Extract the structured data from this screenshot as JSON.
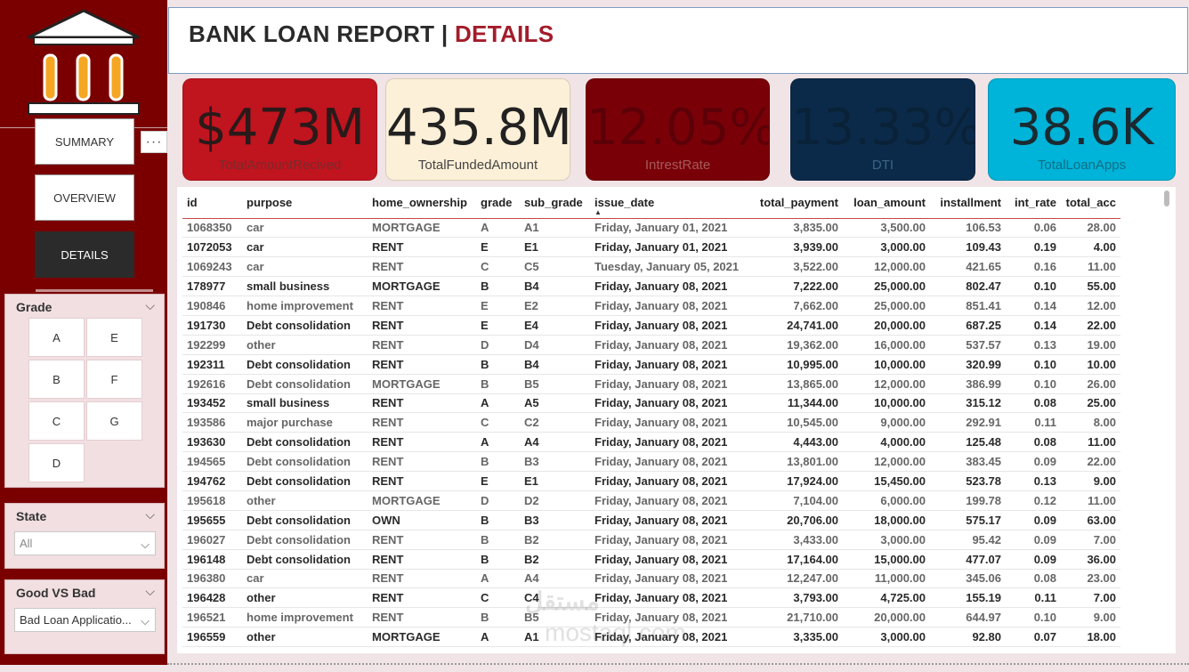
{
  "header": {
    "title_main": "BANK LOAN REPORT | ",
    "title_accent": "DETAILS"
  },
  "nav": {
    "summary": "SUMMARY",
    "overview": "OVERVIEW",
    "details": "DETAILS",
    "more": "···"
  },
  "icons": {
    "logo": "bank-building-icon",
    "chevron": "chevron-down-icon",
    "more": "more-options-icon",
    "sort": "sort-ascending-icon"
  },
  "colors": {
    "sidebar": "#7a0000",
    "accent": "#a31c2a"
  },
  "kpis": [
    {
      "value": "$473M",
      "label": "TotalAmountRecived",
      "bg": "#c0141f",
      "fg": "#2a1a1a",
      "label_color": "#7a2a2a"
    },
    {
      "value": "435.8M",
      "label": "TotalFundedAmount",
      "bg": "#fdf0d8",
      "fg": "#222222",
      "label_color": "#444444"
    },
    {
      "value": "12.05%",
      "label": "IntrestRate",
      "bg": "#7a0008",
      "fg": "#5c0008",
      "label_color": "#a45a5a"
    },
    {
      "value": "13.33%",
      "label": "DTI",
      "bg": "#0b2a4a",
      "fg": "#0a2238",
      "label_color": "#3d6585"
    },
    {
      "value": "38.6K",
      "label": "TotalLoanApps",
      "bg": "#00b3d8",
      "fg": "#1a2a30",
      "label_color": "#0e6e85"
    }
  ],
  "slicers": {
    "grade": {
      "title": "Grade",
      "options": [
        "A",
        "E",
        "B",
        "F",
        "C",
        "G",
        "D"
      ]
    },
    "state": {
      "title": "State",
      "value": "All"
    },
    "good_bad": {
      "title": "Good VS Bad",
      "value": "Bad Loan Applicatio..."
    }
  },
  "table": {
    "columns": [
      "id",
      "purpose",
      "home_ownership",
      "grade",
      "sub_grade",
      "issue_date",
      "total_payment",
      "loan_amount",
      "installment",
      "int_rate",
      "total_acc"
    ],
    "rows": [
      [
        "1068350",
        "car",
        "MORTGAGE",
        "A",
        "A1",
        "Friday, January 01, 2021",
        "3,835.00",
        "3,500.00",
        "106.53",
        "0.06",
        "28.00"
      ],
      [
        "1072053",
        "car",
        "RENT",
        "E",
        "E1",
        "Friday, January 01, 2021",
        "3,939.00",
        "3,000.00",
        "109.43",
        "0.19",
        "4.00"
      ],
      [
        "1069243",
        "car",
        "RENT",
        "C",
        "C5",
        "Tuesday, January 05, 2021",
        "3,522.00",
        "12,000.00",
        "421.65",
        "0.16",
        "11.00"
      ],
      [
        "178977",
        "small business",
        "MORTGAGE",
        "B",
        "B4",
        "Friday, January 08, 2021",
        "7,222.00",
        "25,000.00",
        "802.47",
        "0.10",
        "55.00"
      ],
      [
        "190846",
        "home improvement",
        "RENT",
        "E",
        "E2",
        "Friday, January 08, 2021",
        "7,662.00",
        "25,000.00",
        "851.41",
        "0.14",
        "12.00"
      ],
      [
        "191730",
        "Debt consolidation",
        "RENT",
        "E",
        "E4",
        "Friday, January 08, 2021",
        "24,741.00",
        "20,000.00",
        "687.25",
        "0.14",
        "22.00"
      ],
      [
        "192299",
        "other",
        "RENT",
        "D",
        "D4",
        "Friday, January 08, 2021",
        "19,362.00",
        "16,000.00",
        "537.57",
        "0.13",
        "19.00"
      ],
      [
        "192311",
        "Debt consolidation",
        "RENT",
        "B",
        "B4",
        "Friday, January 08, 2021",
        "10,995.00",
        "10,000.00",
        "320.99",
        "0.10",
        "10.00"
      ],
      [
        "192616",
        "Debt consolidation",
        "MORTGAGE",
        "B",
        "B5",
        "Friday, January 08, 2021",
        "13,865.00",
        "12,000.00",
        "386.99",
        "0.10",
        "26.00"
      ],
      [
        "193452",
        "small business",
        "RENT",
        "A",
        "A5",
        "Friday, January 08, 2021",
        "11,344.00",
        "10,000.00",
        "315.12",
        "0.08",
        "25.00"
      ],
      [
        "193586",
        "major purchase",
        "RENT",
        "C",
        "C2",
        "Friday, January 08, 2021",
        "10,545.00",
        "9,000.00",
        "292.91",
        "0.11",
        "8.00"
      ],
      [
        "193630",
        "Debt consolidation",
        "RENT",
        "A",
        "A4",
        "Friday, January 08, 2021",
        "4,443.00",
        "4,000.00",
        "125.48",
        "0.08",
        "11.00"
      ],
      [
        "194565",
        "Debt consolidation",
        "RENT",
        "B",
        "B3",
        "Friday, January 08, 2021",
        "13,801.00",
        "12,000.00",
        "383.45",
        "0.09",
        "22.00"
      ],
      [
        "194762",
        "Debt consolidation",
        "RENT",
        "E",
        "E1",
        "Friday, January 08, 2021",
        "17,924.00",
        "15,450.00",
        "523.78",
        "0.13",
        "9.00"
      ],
      [
        "195618",
        "other",
        "MORTGAGE",
        "D",
        "D2",
        "Friday, January 08, 2021",
        "7,104.00",
        "6,000.00",
        "199.78",
        "0.12",
        "11.00"
      ],
      [
        "195655",
        "Debt consolidation",
        "OWN",
        "B",
        "B3",
        "Friday, January 08, 2021",
        "20,706.00",
        "18,000.00",
        "575.17",
        "0.09",
        "63.00"
      ],
      [
        "196027",
        "Debt consolidation",
        "RENT",
        "B",
        "B2",
        "Friday, January 08, 2021",
        "3,433.00",
        "3,000.00",
        "95.42",
        "0.09",
        "7.00"
      ],
      [
        "196148",
        "Debt consolidation",
        "RENT",
        "B",
        "B2",
        "Friday, January 08, 2021",
        "17,164.00",
        "15,000.00",
        "477.07",
        "0.09",
        "36.00"
      ],
      [
        "196380",
        "car",
        "RENT",
        "A",
        "A4",
        "Friday, January 08, 2021",
        "12,247.00",
        "11,000.00",
        "345.06",
        "0.08",
        "23.00"
      ],
      [
        "196428",
        "other",
        "RENT",
        "C",
        "C4",
        "Friday, January 08, 2021",
        "3,793.00",
        "4,725.00",
        "155.19",
        "0.11",
        "7.00"
      ],
      [
        "196521",
        "home improvement",
        "RENT",
        "B",
        "B5",
        "Friday, January 08, 2021",
        "21,710.00",
        "20,000.00",
        "644.97",
        "0.10",
        "9.00"
      ],
      [
        "196559",
        "other",
        "MORTGAGE",
        "A",
        "A1",
        "Friday, January 08, 2021",
        "3,335.00",
        "3,000.00",
        "92.80",
        "0.07",
        "18.00"
      ]
    ]
  },
  "watermark": {
    "arabic": "مستقل",
    "latin": "mostaql.com"
  }
}
